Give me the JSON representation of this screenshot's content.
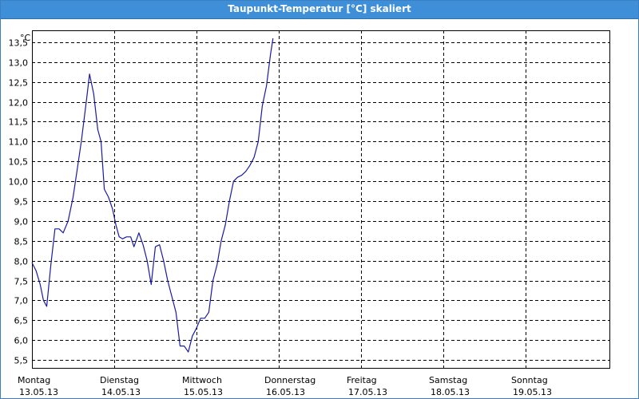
{
  "window": {
    "title": "Taupunkt-Temperatur [°C] skaliert"
  },
  "colors": {
    "titlebar": "#3e8fd8",
    "line": "#1a1aa6",
    "grid": "#000000"
  },
  "chart_data": {
    "type": "line",
    "unit_label": "°C",
    "ylim": [
      5.3,
      13.8
    ],
    "y_ticks": [
      "13,5",
      "13,0",
      "12,5",
      "12,0",
      "11,5",
      "11,0",
      "10,5",
      "10,0",
      "9,5",
      "9,0",
      "8,5",
      "8,0",
      "7,5",
      "7,0",
      "6,5",
      "6,0",
      "5,5"
    ],
    "y_tick_values": [
      13.5,
      13.0,
      12.5,
      12.0,
      11.5,
      11.0,
      10.5,
      10.0,
      9.5,
      9.0,
      8.5,
      8.0,
      7.5,
      7.0,
      6.5,
      6.0,
      5.5
    ],
    "xlim_days": [
      0,
      7
    ],
    "x_days": [
      {
        "day": "Montag",
        "date": "13.05.13"
      },
      {
        "day": "Dienstag",
        "date": "14.05.13"
      },
      {
        "day": "Mittwoch",
        "date": "15.05.13"
      },
      {
        "day": "Donnerstag",
        "date": "16.05.13"
      },
      {
        "day": "Freitag",
        "date": "17.05.13"
      },
      {
        "day": "Samstag",
        "date": "18.05.13"
      },
      {
        "day": "Sonntag",
        "date": "19.05.13"
      }
    ],
    "grid": true,
    "series": [
      {
        "points": [
          [
            0.0,
            7.95
          ],
          [
            0.05,
            7.75
          ],
          [
            0.1,
            7.4
          ],
          [
            0.14,
            7.0
          ],
          [
            0.18,
            6.85
          ],
          [
            0.23,
            7.9
          ],
          [
            0.28,
            8.8
          ],
          [
            0.33,
            8.8
          ],
          [
            0.38,
            8.7
          ],
          [
            0.44,
            9.0
          ],
          [
            0.5,
            9.6
          ],
          [
            0.55,
            10.3
          ],
          [
            0.6,
            11.0
          ],
          [
            0.66,
            12.0
          ],
          [
            0.7,
            12.7
          ],
          [
            0.75,
            12.2
          ],
          [
            0.8,
            11.3
          ],
          [
            0.84,
            11.0
          ],
          [
            0.88,
            9.8
          ],
          [
            0.93,
            9.6
          ],
          [
            0.98,
            9.3
          ],
          [
            1.02,
            8.9
          ],
          [
            1.06,
            8.6
          ],
          [
            1.1,
            8.55
          ],
          [
            1.15,
            8.6
          ],
          [
            1.2,
            8.6
          ],
          [
            1.24,
            8.35
          ],
          [
            1.3,
            8.7
          ],
          [
            1.35,
            8.4
          ],
          [
            1.4,
            8.0
          ],
          [
            1.45,
            7.4
          ],
          [
            1.5,
            8.35
          ],
          [
            1.55,
            8.4
          ],
          [
            1.6,
            8.0
          ],
          [
            1.65,
            7.5
          ],
          [
            1.7,
            7.1
          ],
          [
            1.75,
            6.7
          ],
          [
            1.8,
            5.85
          ],
          [
            1.85,
            5.85
          ],
          [
            1.9,
            5.7
          ],
          [
            1.95,
            6.1
          ],
          [
            2.0,
            6.3
          ],
          [
            2.05,
            6.55
          ],
          [
            2.1,
            6.55
          ],
          [
            2.15,
            6.7
          ],
          [
            2.2,
            7.5
          ],
          [
            2.25,
            7.9
          ],
          [
            2.3,
            8.5
          ],
          [
            2.35,
            8.9
          ],
          [
            2.4,
            9.5
          ],
          [
            2.45,
            10.0
          ],
          [
            2.5,
            10.1
          ],
          [
            2.55,
            10.15
          ],
          [
            2.6,
            10.25
          ],
          [
            2.65,
            10.4
          ],
          [
            2.7,
            10.6
          ],
          [
            2.75,
            11.0
          ],
          [
            2.8,
            11.9
          ],
          [
            2.85,
            12.4
          ],
          [
            2.9,
            13.2
          ],
          [
            2.93,
            13.6
          ]
        ]
      }
    ]
  }
}
